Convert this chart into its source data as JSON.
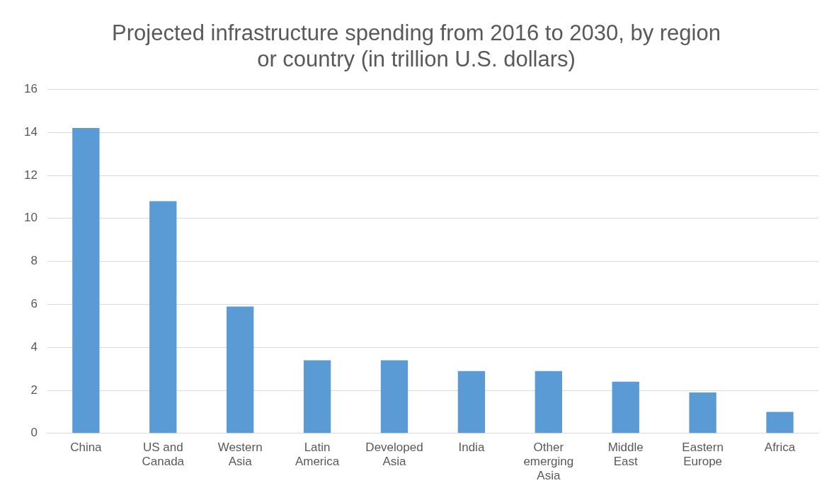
{
  "chart_data": {
    "type": "bar",
    "title": "Projected infrastructure spending from 2016 to 2030, by region or country (in trillion U.S. dollars)",
    "categories": [
      "China",
      "US and Canada",
      "Western Asia",
      "Latin America",
      "Developed Asia",
      "India",
      "Other emerging Asia",
      "Middle East",
      "Eastern Europe",
      "Africa"
    ],
    "values": [
      14.2,
      10.8,
      5.9,
      3.4,
      3.4,
      2.9,
      2.9,
      2.4,
      1.9,
      1.0
    ],
    "color": "#5b9bd5",
    "ylim": [
      0,
      16
    ],
    "yticks": [
      0,
      2,
      4,
      6,
      8,
      10,
      12,
      14,
      16
    ],
    "grid": "y"
  }
}
